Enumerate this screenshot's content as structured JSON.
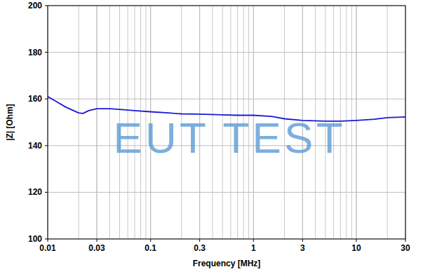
{
  "chart_data": {
    "type": "line",
    "x_label": "Frequency [MHz]",
    "y_label": "|Z| [Ohm]",
    "annotation": "EUT TEST",
    "x": [
      0.01,
      0.012,
      0.015,
      0.02,
      0.022,
      0.025,
      0.03,
      0.04,
      0.05,
      0.07,
      0.1,
      0.15,
      0.2,
      0.3,
      0.5,
      0.7,
      1,
      1.5,
      2,
      3,
      5,
      7,
      10,
      15,
      20,
      30
    ],
    "values": [
      161,
      159,
      156.5,
      154,
      153.8,
      155,
      155.8,
      155.8,
      155.5,
      155,
      154.5,
      154,
      153.6,
      153.5,
      153.2,
      153,
      153,
      152.5,
      151.5,
      150.8,
      150.5,
      150.5,
      150.8,
      151.3,
      152,
      152.3
    ],
    "color": "#1a1ad6",
    "xlim": [
      0.01,
      30
    ],
    "ylim": [
      100,
      200
    ],
    "xticks": [
      0.01,
      0.03,
      0.1,
      0.3,
      1,
      3,
      10,
      30
    ],
    "yticks": [
      100,
      120,
      140,
      160,
      180,
      200
    ],
    "log": "x",
    "grid": true
  }
}
